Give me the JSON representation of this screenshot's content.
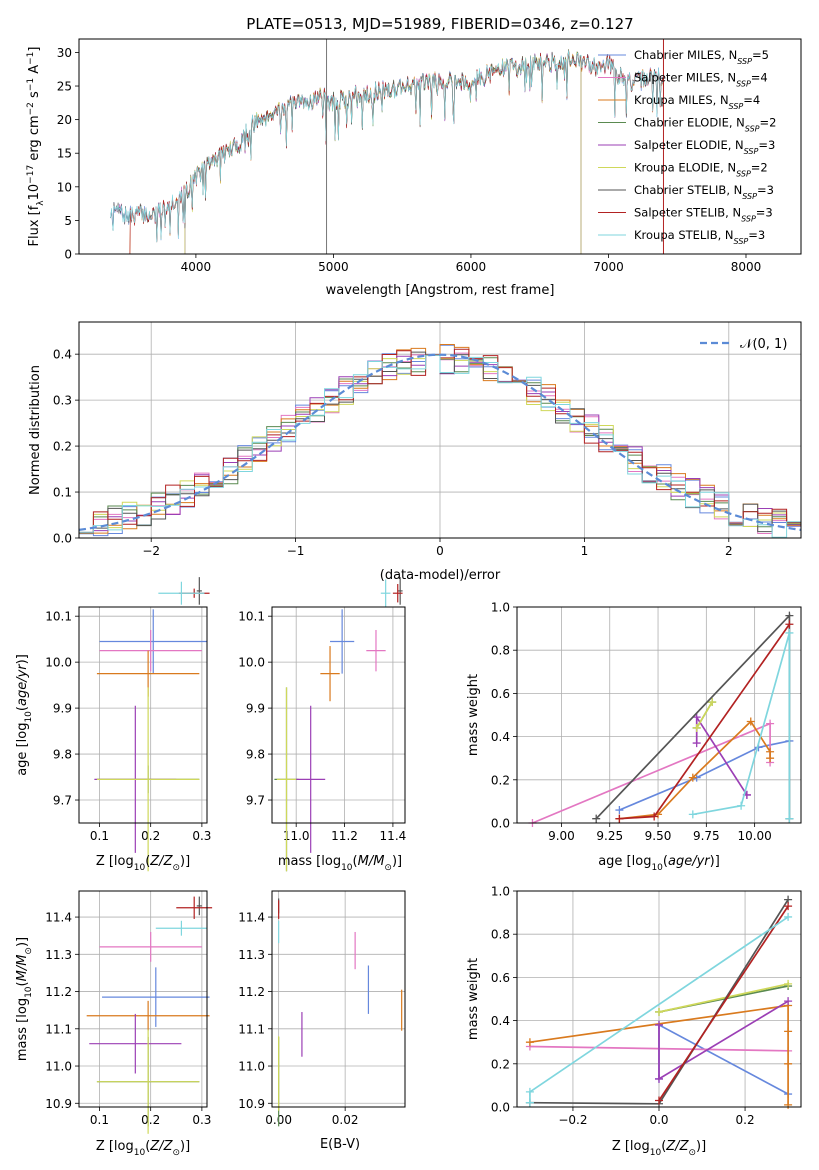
{
  "figure_title": "PLATE=0513, MJD=51989, FIBERID=0346, z=0.127",
  "chart_data": [
    {
      "id": "spectrum",
      "type": "line",
      "xlabel": "wavelength [Angstrom, rest frame]",
      "ylabel": "Flux [f_λ 10^-17 erg cm^-2 s^-1 A^-1]",
      "xlim": [
        3150,
        8400
      ],
      "ylim": [
        0,
        32
      ],
      "xticks": [
        4000,
        5000,
        6000,
        7000,
        8000
      ],
      "yticks": [
        0,
        5,
        10,
        15,
        20,
        25,
        30
      ],
      "grid": false,
      "legend_position": "top-right",
      "x": [
        3380,
        3450,
        3500,
        3600,
        3700,
        3800,
        3900,
        4000,
        4100,
        4200,
        4300,
        4400,
        4500,
        4600,
        4700,
        4800,
        4900,
        5000,
        5100,
        5200,
        5300,
        5400,
        5500,
        5600,
        5700,
        5800,
        5900,
        6000,
        6100,
        6200,
        6300,
        6400,
        6500,
        6600,
        6700,
        6800,
        6900,
        7000,
        7100,
        7200,
        7300,
        7400
      ],
      "y": [
        6.2,
        6.5,
        5.5,
        6.0,
        5.8,
        7.5,
        8.5,
        11.5,
        13.5,
        15.0,
        16.0,
        19.0,
        20.5,
        21.5,
        22.0,
        22.5,
        23.5,
        22.5,
        23.0,
        24.0,
        24.0,
        24.5,
        25.0,
        25.2,
        25.5,
        26.0,
        25.8,
        25.5,
        26.5,
        27.5,
        28.0,
        27.8,
        28.5,
        28.5,
        29.0,
        28.5,
        28.0,
        28.5,
        26.0,
        25.5,
        26.5,
        26.0
      ],
      "lines": [
        {
          "name": "Chabrier MILES, N_SSP=5",
          "color": "#6688dd",
          "legend_base": "Chabrier MILES, N",
          "legend_sub": "SSP",
          "legend_tail": "=5",
          "start": 3380,
          "end": 7400
        },
        {
          "name": "Salpeter MILES, N_SSP=4",
          "color": "#e377c2",
          "legend_base": "Salpeter MILES, N",
          "legend_sub": "SSP",
          "legend_tail": "=4",
          "start": 3380,
          "end": 7400
        },
        {
          "name": "Kroupa MILES, N_SSP=4",
          "color": "#d97a1e",
          "legend_base": "Kroupa MILES, N",
          "legend_sub": "SSP",
          "legend_tail": "=4",
          "start": 3520,
          "end": 7400
        },
        {
          "name": "Chabrier ELODIE, N_SSP=2",
          "color": "#5a8a50",
          "legend_base": "Chabrier ELODIE, N",
          "legend_sub": "SSP",
          "legend_tail": "=2",
          "start": 3920,
          "end": 6800
        },
        {
          "name": "Salpeter ELODIE, N_SSP=3",
          "color": "#9b3fb5",
          "legend_base": "Salpeter ELODIE, N",
          "legend_sub": "SSP",
          "legend_tail": "=3",
          "start": 3920,
          "end": 6800
        },
        {
          "name": "Kroupa ELODIE, N_SSP=2",
          "color": "#cfd85a",
          "legend_base": "Kroupa ELODIE, N",
          "legend_sub": "SSP",
          "legend_tail": "=2",
          "start": 3920,
          "end": 6800
        },
        {
          "name": "Chabrier STELIB, N_SSP=3",
          "color": "#555555",
          "legend_base": "Chabrier STELIB, N",
          "legend_sub": "SSP",
          "legend_tail": "=3",
          "start": 3380,
          "end": 7400
        },
        {
          "name": "Salpeter STELIB, N_SSP=3",
          "color": "#b22222",
          "legend_base": "Salpeter STELIB, N",
          "legend_sub": "SSP",
          "legend_tail": "=3",
          "start": 3520,
          "end": 7400
        },
        {
          "name": "Kroupa STELIB, N_SSP=3",
          "color": "#7fd6de",
          "legend_base": "Kroupa STELIB, N",
          "legend_sub": "SSP",
          "legend_tail": "=3",
          "start": 3380,
          "end": 7400
        }
      ]
    },
    {
      "id": "residuals",
      "type": "histogram",
      "xlabel": "(data-model)/error",
      "ylabel": "Normed distribution",
      "xlim": [
        -2.5,
        2.5
      ],
      "ylim": [
        0,
        0.47
      ],
      "xticks": [
        -2,
        -1,
        0,
        1,
        2
      ],
      "yticks": [
        0.0,
        0.1,
        0.2,
        0.3,
        0.4
      ],
      "grid": true,
      "legend_position": "top-right",
      "reference_curve": {
        "name": "N(0,1)",
        "label": "𝒩(0, 1)",
        "color": "#5b8bd6",
        "style": "dashed"
      },
      "bin_width": 0.1,
      "x_start": -2.5
    },
    {
      "id": "age_vs_Z",
      "type": "errorbar",
      "xlabel": "Z [log10(Z/Z⊙)]",
      "ylabel": "age [log10(age/yr)]",
      "xlim": [
        0.06,
        0.31
      ],
      "ylim": [
        9.65,
        10.12
      ],
      "xticks": [
        0.1,
        0.2,
        0.3
      ],
      "yticks": [
        9.7,
        9.8,
        9.9,
        10.0,
        10.1
      ],
      "grid": true,
      "points": [
        {
          "series": "Chabrier MILES",
          "x": 0.205,
          "xerr": 0.105,
          "y": 10.045,
          "yerr": 0.07
        },
        {
          "series": "Salpeter MILES",
          "x": 0.2,
          "xerr": 0.1,
          "y": 10.025,
          "yerr": 0.045
        },
        {
          "series": "Kroupa MILES",
          "x": 0.195,
          "xerr": 0.1,
          "y": 9.975,
          "yerr": 0.05
        },
        {
          "series": "Chabrier ELODIE",
          "x": 0.195,
          "xerr": 0.1,
          "y": 9.745,
          "yerr": 0.03
        },
        {
          "series": "Salpeter ELODIE",
          "x": 0.17,
          "xerr": 0.08,
          "y": 9.745,
          "yerr": 0.16
        },
        {
          "series": "Kroupa ELODIE",
          "x": 0.195,
          "xerr": 0.1,
          "y": 9.745,
          "yerr": 0.2
        },
        {
          "series": "Chabrier STELIB",
          "x": 0.295,
          "xerr": 0.005,
          "y": 10.155,
          "yerr": 0.03
        },
        {
          "series": "Salpeter STELIB",
          "x": 0.285,
          "xerr": 0.03,
          "y": 10.15,
          "yerr": 0.01
        },
        {
          "series": "Kroupa STELIB",
          "x": 0.26,
          "xerr": 0.045,
          "y": 10.15,
          "yerr": 0.025
        }
      ]
    },
    {
      "id": "age_vs_mass",
      "type": "errorbar",
      "xlabel": "mass [log10(M/M⊙)]",
      "ylabel": "",
      "xlim": [
        10.9,
        11.45
      ],
      "ylim": [
        9.65,
        10.12
      ],
      "xticks": [
        11.0,
        11.2,
        11.4
      ],
      "yticks": [
        9.7,
        9.8,
        9.9,
        10.0,
        10.1
      ],
      "grid": true,
      "points": [
        {
          "series": "Chabrier MILES",
          "x": 11.19,
          "xerr": 0.05,
          "y": 10.045,
          "yerr": 0.07
        },
        {
          "series": "Salpeter MILES",
          "x": 11.33,
          "xerr": 0.04,
          "y": 10.025,
          "yerr": 0.045
        },
        {
          "series": "Kroupa MILES",
          "x": 11.14,
          "xerr": 0.04,
          "y": 9.975,
          "yerr": 0.06
        },
        {
          "series": "Chabrier ELODIE",
          "x": 10.96,
          "xerr": 0.05,
          "y": 9.745,
          "yerr": 0.2
        },
        {
          "series": "Salpeter ELODIE",
          "x": 11.06,
          "xerr": 0.06,
          "y": 9.745,
          "yerr": 0.16
        },
        {
          "series": "Kroupa ELODIE",
          "x": 10.96,
          "xerr": 0.04,
          "y": 9.745,
          "yerr": 0.2
        },
        {
          "series": "Chabrier STELIB",
          "x": 11.43,
          "xerr": 0.01,
          "y": 10.155,
          "yerr": 0.03
        },
        {
          "series": "Salpeter STELIB",
          "x": 11.42,
          "xerr": 0.02,
          "y": 10.15,
          "yerr": 0.02
        },
        {
          "series": "Kroupa STELIB",
          "x": 11.37,
          "xerr": 0.02,
          "y": 10.15,
          "yerr": 0.03
        }
      ]
    },
    {
      "id": "weight_vs_age",
      "type": "line",
      "xlabel": "age [log10(age/yr)]",
      "ylabel": "mass weight",
      "xlim": [
        8.77,
        10.24
      ],
      "ylim": [
        0,
        1
      ],
      "xticks": [
        9.0,
        9.25,
        9.5,
        9.75,
        10.0
      ],
      "yticks": [
        0.0,
        0.2,
        0.4,
        0.6,
        0.8,
        1.0
      ],
      "grid": true,
      "series": [
        {
          "name": "Chabrier MILES",
          "x": [
            9.3,
            9.7,
            10.02,
            10.18
          ],
          "y": [
            0.06,
            0.21,
            0.35,
            0.38
          ]
        },
        {
          "name": "Salpeter MILES",
          "x": [
            8.85,
            10.08,
            10.08
          ],
          "y": [
            0.0,
            0.46,
            0.28
          ]
        },
        {
          "name": "Kroupa MILES",
          "x": [
            9.3,
            9.5,
            9.68,
            9.98,
            10.08,
            10.08
          ],
          "y": [
            0.02,
            0.04,
            0.21,
            0.47,
            0.33,
            0.3
          ]
        },
        {
          "name": "Chabrier ELODIE",
          "x": [
            9.7,
            9.78
          ],
          "y": [
            0.44,
            0.56
          ]
        },
        {
          "name": "Salpeter ELODIE",
          "x": [
            9.7,
            9.7,
            9.96,
            9.96
          ],
          "y": [
            0.37,
            0.49,
            0.13,
            0.13
          ]
        },
        {
          "name": "Kroupa ELODIE",
          "x": [
            9.7,
            9.78
          ],
          "y": [
            0.44,
            0.56
          ]
        },
        {
          "name": "Chabrier STELIB",
          "x": [
            9.18,
            10.18,
            10.18
          ],
          "y": [
            0.02,
            0.96,
            0.02
          ]
        },
        {
          "name": "Salpeter STELIB",
          "x": [
            9.3,
            9.48,
            10.18
          ],
          "y": [
            0.02,
            0.03,
            0.92
          ]
        },
        {
          "name": "Kroupa STELIB",
          "x": [
            9.68,
            9.93,
            10.18,
            10.18
          ],
          "y": [
            0.04,
            0.08,
            0.88,
            0.02
          ]
        }
      ]
    },
    {
      "id": "mass_vs_Z",
      "type": "errorbar",
      "xlabel": "Z [log10(Z/Z⊙)]",
      "ylabel": "mass [log10(M/M⊙)]",
      "xlim": [
        0.06,
        0.31
      ],
      "ylim": [
        10.89,
        11.47
      ],
      "xticks": [
        0.1,
        0.2,
        0.3
      ],
      "yticks": [
        10.9,
        11.0,
        11.1,
        11.2,
        11.3,
        11.4
      ],
      "grid": true,
      "points": [
        {
          "series": "Chabrier MILES",
          "x": 0.21,
          "xerr": 0.105,
          "y": 11.185,
          "yerr": 0.08
        },
        {
          "series": "Salpeter MILES",
          "x": 0.2,
          "xerr": 0.1,
          "y": 11.32,
          "yerr": 0.04
        },
        {
          "series": "Kroupa MILES",
          "x": 0.195,
          "xerr": 0.12,
          "y": 11.135,
          "yerr": 0.04
        },
        {
          "series": "Chabrier ELODIE",
          "x": 0.195,
          "xerr": 0.1,
          "y": 10.958,
          "yerr": 0.12
        },
        {
          "series": "Salpeter ELODIE",
          "x": 0.17,
          "xerr": 0.09,
          "y": 11.06,
          "yerr": 0.08
        },
        {
          "series": "Kroupa ELODIE",
          "x": 0.195,
          "xerr": 0.1,
          "y": 10.958,
          "yerr": 0.14
        },
        {
          "series": "Chabrier STELIB",
          "x": 0.295,
          "xerr": 0.005,
          "y": 11.43,
          "yerr": 0.025
        },
        {
          "series": "Salpeter STELIB",
          "x": 0.285,
          "xerr": 0.035,
          "y": 11.425,
          "yerr": 0.03
        },
        {
          "series": "Kroupa STELIB",
          "x": 0.26,
          "xerr": 0.05,
          "y": 11.37,
          "yerr": 0.02
        }
      ]
    },
    {
      "id": "mass_vs_ebv",
      "type": "errorbar",
      "xlabel": "E(B-V)",
      "ylabel": "",
      "xlim": [
        -0.002,
        0.038
      ],
      "ylim": [
        10.89,
        11.47
      ],
      "xticks": [
        0.0,
        0.02
      ],
      "yticks": [
        10.9,
        11.0,
        11.1,
        11.2,
        11.3,
        11.4
      ],
      "grid": true,
      "points": [
        {
          "series": "Chabrier MILES",
          "x": 0.027,
          "xerr": 0,
          "y": 11.205,
          "yerr": 0.065
        },
        {
          "series": "Salpeter MILES",
          "x": 0.023,
          "xerr": 0,
          "y": 11.31,
          "yerr": 0.05
        },
        {
          "series": "Kroupa MILES",
          "x": 0.037,
          "xerr": 0,
          "y": 11.15,
          "yerr": 0.055
        },
        {
          "series": "Chabrier ELODIE",
          "x": 0.0,
          "xerr": 0,
          "y": 10.958,
          "yerr": 0.12
        },
        {
          "series": "Salpeter ELODIE",
          "x": 0.007,
          "xerr": 0,
          "y": 11.085,
          "yerr": 0.06
        },
        {
          "series": "Kroupa ELODIE",
          "x": 0.0,
          "xerr": 0,
          "y": 10.98,
          "yerr": 0.1
        },
        {
          "series": "Chabrier STELIB",
          "x": 0.0,
          "xerr": 0,
          "y": 11.43,
          "yerr": 0.02
        },
        {
          "series": "Salpeter STELIB",
          "x": 0.0,
          "xerr": 0,
          "y": 11.42,
          "yerr": 0.025
        },
        {
          "series": "Kroupa STELIB",
          "x": 0.0,
          "xerr": 0,
          "y": 11.36,
          "yerr": 0.03
        }
      ]
    },
    {
      "id": "weight_vs_Z",
      "type": "line",
      "xlabel": "Z [log10(Z/Z⊙)]",
      "ylabel": "mass weight",
      "xlim": [
        -0.33,
        0.33
      ],
      "ylim": [
        0,
        1
      ],
      "xticks": [
        -0.2,
        0.0,
        0.2
      ],
      "yticks": [
        0.0,
        0.2,
        0.4,
        0.6,
        0.8,
        1.0
      ],
      "grid": true,
      "series": [
        {
          "name": "Chabrier MILES",
          "x": [
            0.0,
            0.0,
            0.3
          ],
          "y": [
            0.13,
            0.38,
            0.06
          ]
        },
        {
          "name": "Salpeter MILES",
          "x": [
            -0.3,
            0.3
          ],
          "y": [
            0.28,
            0.26
          ]
        },
        {
          "name": "Kroupa MILES",
          "x": [
            -0.3,
            0.3,
            0.3,
            0.3,
            0.3
          ],
          "y": [
            0.3,
            0.47,
            0.35,
            0.2,
            0.01
          ]
        },
        {
          "name": "Chabrier ELODIE",
          "x": [
            0.0,
            0.3
          ],
          "y": [
            0.44,
            0.56
          ]
        },
        {
          "name": "Salpeter ELODIE",
          "x": [
            0.0,
            0.0,
            0.3
          ],
          "y": [
            0.38,
            0.13,
            0.49
          ]
        },
        {
          "name": "Kroupa ELODIE",
          "x": [
            0.0,
            0.3
          ],
          "y": [
            0.44,
            0.57
          ]
        },
        {
          "name": "Chabrier STELIB",
          "x": [
            -0.3,
            0.0,
            0.3
          ],
          "y": [
            0.02,
            0.015,
            0.96
          ]
        },
        {
          "name": "Salpeter STELIB",
          "x": [
            0.0,
            0.3
          ],
          "y": [
            0.03,
            0.93
          ]
        },
        {
          "name": "Kroupa STELIB",
          "x": [
            -0.3,
            -0.3,
            0.3
          ],
          "y": [
            0.02,
            0.07,
            0.88
          ]
        }
      ]
    }
  ]
}
